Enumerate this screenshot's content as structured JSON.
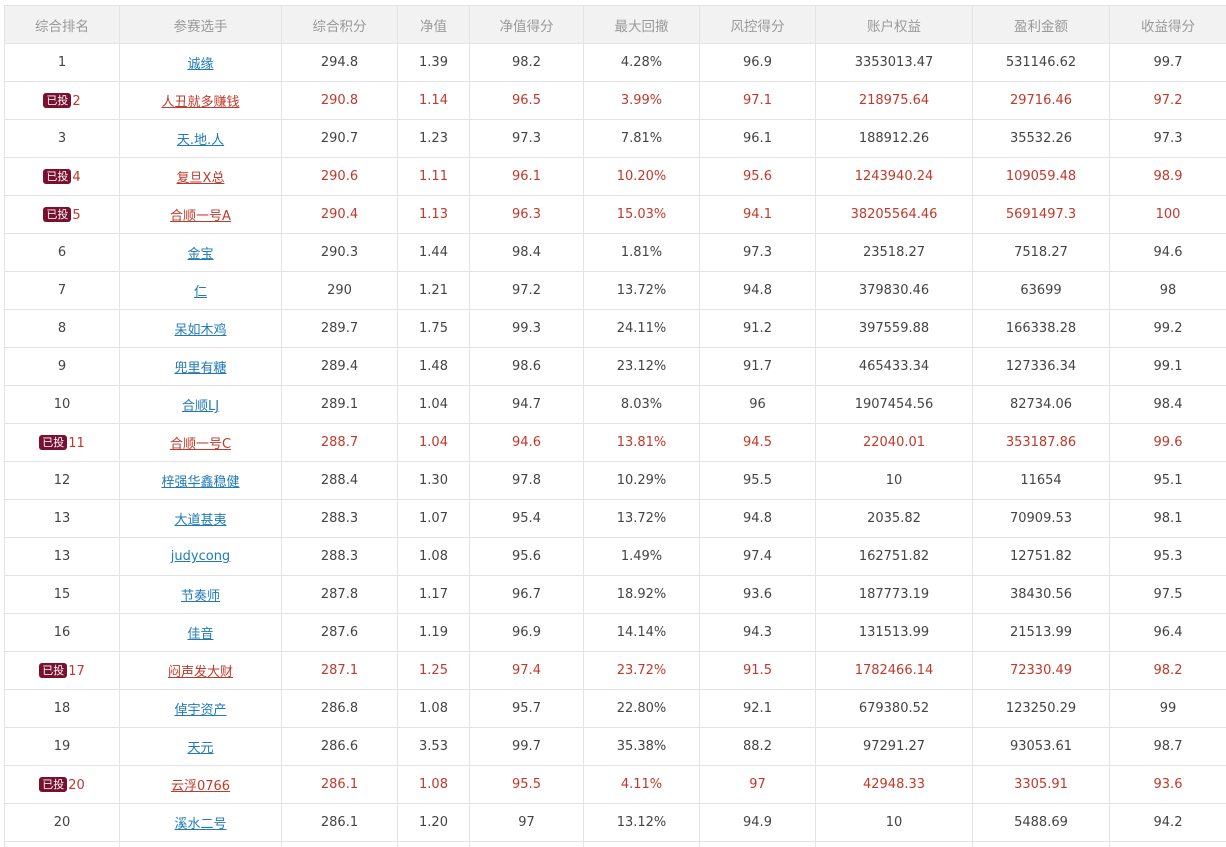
{
  "table": {
    "headers": [
      "综合排名",
      "参赛选手",
      "综合积分",
      "净值",
      "净值得分",
      "最大回撤",
      "风控得分",
      "账户权益",
      "盈利金额",
      "收益得分"
    ],
    "badge_text": "已投",
    "rows": [
      {
        "rank": "1",
        "invested": false,
        "name": "诚缘",
        "score": "294.8",
        "nav": "1.39",
        "nav_score": "98.2",
        "max_drawdown": "4.28%",
        "risk_score": "96.9",
        "equity": "3353013.47",
        "profit": "531146.62",
        "return_score": "99.7"
      },
      {
        "rank": "2",
        "invested": true,
        "name": "人丑就多赚钱",
        "score": "290.8",
        "nav": "1.14",
        "nav_score": "96.5",
        "max_drawdown": "3.99%",
        "risk_score": "97.1",
        "equity": "218975.64",
        "profit": "29716.46",
        "return_score": "97.2"
      },
      {
        "rank": "3",
        "invested": false,
        "name": "天.地.人",
        "score": "290.7",
        "nav": "1.23",
        "nav_score": "97.3",
        "max_drawdown": "7.81%",
        "risk_score": "96.1",
        "equity": "188912.26",
        "profit": "35532.26",
        "return_score": "97.3"
      },
      {
        "rank": "4",
        "invested": true,
        "name": "复旦X总",
        "score": "290.6",
        "nav": "1.11",
        "nav_score": "96.1",
        "max_drawdown": "10.20%",
        "risk_score": "95.6",
        "equity": "1243940.24",
        "profit": "109059.48",
        "return_score": "98.9"
      },
      {
        "rank": "5",
        "invested": true,
        "name": "合顺一号A",
        "score": "290.4",
        "nav": "1.13",
        "nav_score": "96.3",
        "max_drawdown": "15.03%",
        "risk_score": "94.1",
        "equity": "38205564.46",
        "profit": "5691497.3",
        "return_score": "100"
      },
      {
        "rank": "6",
        "invested": false,
        "name": "金宝",
        "score": "290.3",
        "nav": "1.44",
        "nav_score": "98.4",
        "max_drawdown": "1.81%",
        "risk_score": "97.3",
        "equity": "23518.27",
        "profit": "7518.27",
        "return_score": "94.6"
      },
      {
        "rank": "7",
        "invested": false,
        "name": "仁",
        "score": "290",
        "nav": "1.21",
        "nav_score": "97.2",
        "max_drawdown": "13.72%",
        "risk_score": "94.8",
        "equity": "379830.46",
        "profit": "63699",
        "return_score": "98"
      },
      {
        "rank": "8",
        "invested": false,
        "name": "呆如木鸡",
        "score": "289.7",
        "nav": "1.75",
        "nav_score": "99.3",
        "max_drawdown": "24.11%",
        "risk_score": "91.2",
        "equity": "397559.88",
        "profit": "166338.28",
        "return_score": "99.2"
      },
      {
        "rank": "9",
        "invested": false,
        "name": "兜里有糖",
        "score": "289.4",
        "nav": "1.48",
        "nav_score": "98.6",
        "max_drawdown": "23.12%",
        "risk_score": "91.7",
        "equity": "465433.34",
        "profit": "127336.34",
        "return_score": "99.1"
      },
      {
        "rank": "10",
        "invested": false,
        "name": "合顺LJ",
        "score": "289.1",
        "nav": "1.04",
        "nav_score": "94.7",
        "max_drawdown": "8.03%",
        "risk_score": "96",
        "equity": "1907454.56",
        "profit": "82734.06",
        "return_score": "98.4"
      },
      {
        "rank": "11",
        "invested": true,
        "name": "合顺一号C",
        "score": "288.7",
        "nav": "1.04",
        "nav_score": "94.6",
        "max_drawdown": "13.81%",
        "risk_score": "94.5",
        "equity": "22040.01",
        "profit": "353187.86",
        "return_score": "99.6"
      },
      {
        "rank": "12",
        "invested": false,
        "name": "梓强华鑫稳健",
        "score": "288.4",
        "nav": "1.30",
        "nav_score": "97.8",
        "max_drawdown": "10.29%",
        "risk_score": "95.5",
        "equity": "10",
        "profit": "11654",
        "return_score": "95.1"
      },
      {
        "rank": "13",
        "invested": false,
        "name": "大道甚夷",
        "score": "288.3",
        "nav": "1.07",
        "nav_score": "95.4",
        "max_drawdown": "13.72%",
        "risk_score": "94.8",
        "equity": "2035.82",
        "profit": "70909.53",
        "return_score": "98.1"
      },
      {
        "rank": "13",
        "invested": false,
        "name": "judycong",
        "score": "288.3",
        "nav": "1.08",
        "nav_score": "95.6",
        "max_drawdown": "1.49%",
        "risk_score": "97.4",
        "equity": "162751.82",
        "profit": "12751.82",
        "return_score": "95.3"
      },
      {
        "rank": "15",
        "invested": false,
        "name": "节奏师",
        "score": "287.8",
        "nav": "1.17",
        "nav_score": "96.7",
        "max_drawdown": "18.92%",
        "risk_score": "93.6",
        "equity": "187773.19",
        "profit": "38430.56",
        "return_score": "97.5"
      },
      {
        "rank": "16",
        "invested": false,
        "name": "佳音",
        "score": "287.6",
        "nav": "1.19",
        "nav_score": "96.9",
        "max_drawdown": "14.14%",
        "risk_score": "94.3",
        "equity": "131513.99",
        "profit": "21513.99",
        "return_score": "96.4"
      },
      {
        "rank": "17",
        "invested": true,
        "name": "闷声发大财",
        "score": "287.1",
        "nav": "1.25",
        "nav_score": "97.4",
        "max_drawdown": "23.72%",
        "risk_score": "91.5",
        "equity": "1782466.14",
        "profit": "72330.49",
        "return_score": "98.2"
      },
      {
        "rank": "18",
        "invested": false,
        "name": "倬宇资产",
        "score": "286.8",
        "nav": "1.08",
        "nav_score": "95.7",
        "max_drawdown": "22.80%",
        "risk_score": "92.1",
        "equity": "679380.52",
        "profit": "123250.29",
        "return_score": "99"
      },
      {
        "rank": "19",
        "invested": false,
        "name": "天元",
        "score": "286.6",
        "nav": "3.53",
        "nav_score": "99.7",
        "max_drawdown": "35.38%",
        "risk_score": "88.2",
        "equity": "97291.27",
        "profit": "93053.61",
        "return_score": "98.7"
      },
      {
        "rank": "20",
        "invested": true,
        "name": "云浮0766",
        "score": "286.1",
        "nav": "1.08",
        "nav_score": "95.5",
        "max_drawdown": "4.11%",
        "risk_score": "97",
        "equity": "42948.33",
        "profit": "3305.91",
        "return_score": "93.6"
      },
      {
        "rank": "20",
        "invested": false,
        "name": "溪水二号",
        "score": "286.1",
        "nav": "1.20",
        "nav_score": "97",
        "max_drawdown": "13.12%",
        "risk_score": "94.9",
        "equity": "10",
        "profit": "5488.69",
        "return_score": "94.2"
      },
      {
        "rank": "",
        "invested": false,
        "name": "",
        "score": "",
        "nav": "",
        "nav_score": "",
        "max_drawdown": "",
        "risk_score": "",
        "equity": "",
        "profit": "",
        "return_score": ""
      }
    ]
  },
  "colors": {
    "header_bg": "#f2f2f2",
    "header_text": "#9a9a9a",
    "border": "#e3e3e3",
    "link": "#1f7ab8",
    "highlight_text": "#c0392b",
    "badge_bg": "#7a1030"
  }
}
